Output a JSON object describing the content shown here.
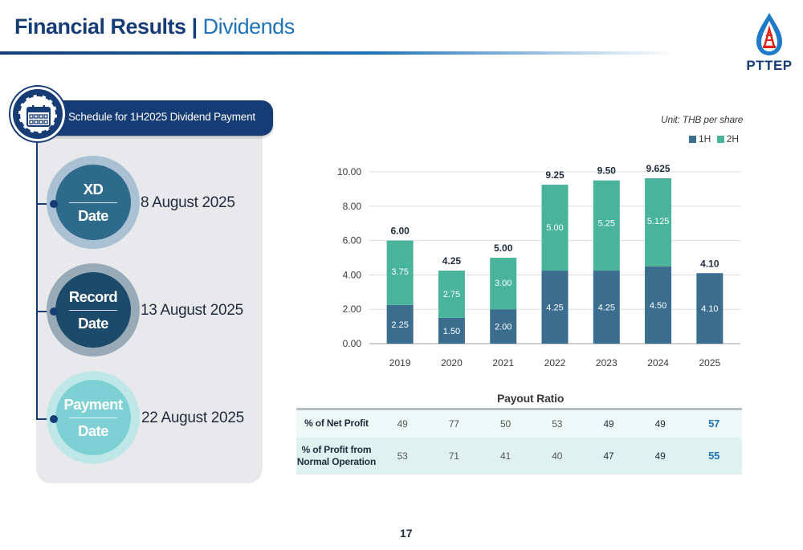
{
  "header": {
    "title_main": "Financial Results",
    "title_sep": " | ",
    "title_sub": "Dividends",
    "logo_text": "PTTEP"
  },
  "schedule": {
    "title": "Schedule for 1H2025 Dividend Payment",
    "items": [
      {
        "label_top": "XD",
        "label_bottom": "Date",
        "date": "8 August 2025",
        "color": "#2e6a8c"
      },
      {
        "label_top": "Record",
        "label_bottom": "Date",
        "date": "13 August 2025",
        "color": "#1b4a6b"
      },
      {
        "label_top": "Payment",
        "label_bottom": "Date",
        "date": "22 August 2025",
        "color": "#7dd0d3"
      }
    ]
  },
  "chart_data": {
    "type": "bar",
    "stacked": true,
    "unit_label": "Unit: THB per share",
    "categories": [
      "2019",
      "2020",
      "2021",
      "2022",
      "2023",
      "2024",
      "2025"
    ],
    "series": [
      {
        "name": "1H",
        "color": "#3b6d8f",
        "values": [
          2.25,
          1.5,
          2.0,
          4.25,
          4.25,
          4.5,
          4.1
        ],
        "labels": [
          "2.25",
          "1.50",
          "2.00",
          "4.25",
          "4.25",
          "4.50",
          "4.10"
        ]
      },
      {
        "name": "2H",
        "color": "#49b39b",
        "values": [
          3.75,
          2.75,
          3.0,
          5.0,
          5.25,
          5.125,
          null
        ],
        "labels": [
          "3.75",
          "2.75",
          "3.00",
          "5.00",
          "5.25",
          "5.125",
          ""
        ]
      }
    ],
    "totals": [
      "6.00",
      "4.25",
      "5.00",
      "9.25",
      "9.50",
      "9.625",
      "4.10"
    ],
    "yticks": [
      "0.00",
      "2.00",
      "4.00",
      "6.00",
      "8.00",
      "10.00"
    ],
    "ylim": [
      0,
      10
    ],
    "grid": true,
    "legend": "top-right"
  },
  "payout": {
    "title": "Payout Ratio",
    "rows": [
      {
        "label": "% of Net Profit",
        "values": [
          "49",
          "77",
          "50",
          "53",
          "49",
          "49",
          "57"
        ]
      },
      {
        "label": "% of Profit from Normal Operation",
        "values": [
          "53",
          "71",
          "41",
          "40",
          "47",
          "49",
          "55"
        ]
      }
    ]
  },
  "page_number": "17"
}
